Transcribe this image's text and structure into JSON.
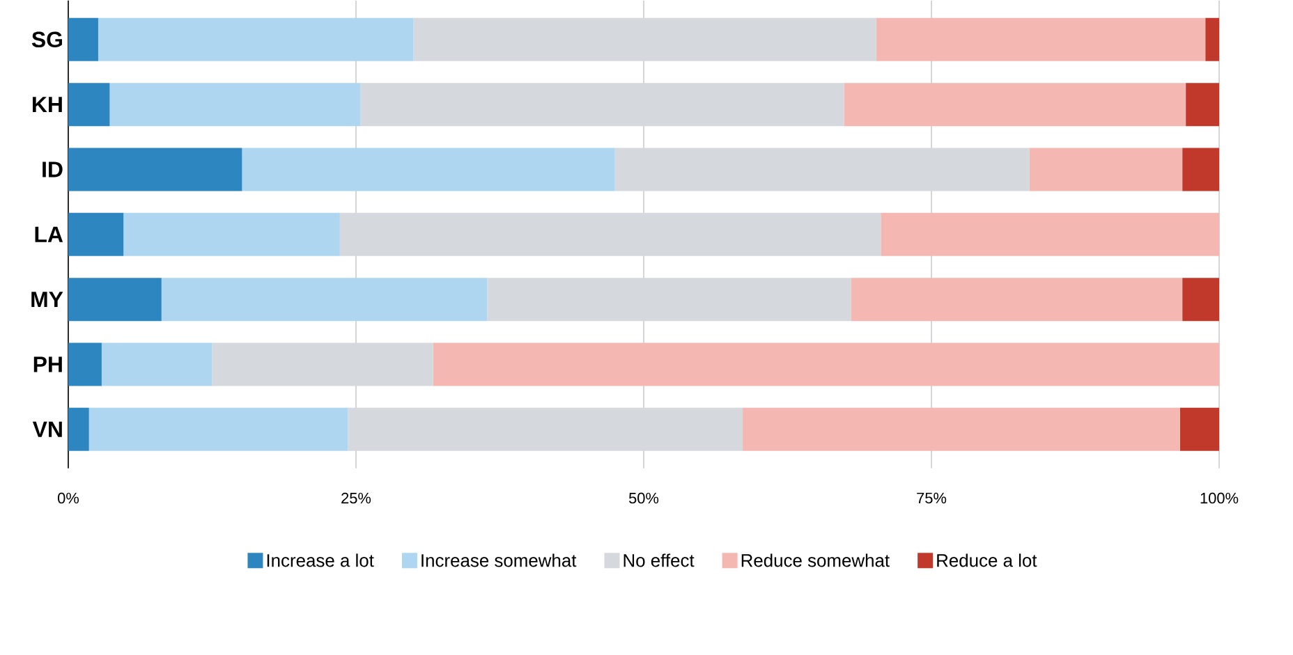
{
  "chart_data": {
    "type": "bar",
    "orientation": "horizontal",
    "stacked": true,
    "categories": [
      "SG",
      "KH",
      "ID",
      "LA",
      "MY",
      "PH",
      "VN"
    ],
    "series": [
      {
        "name": "Increase a lot",
        "color": "#2e86c1",
        "values": [
          2.6,
          3.6,
          15.1,
          4.8,
          8.1,
          2.9,
          1.8
        ]
      },
      {
        "name": "Increase somewhat",
        "color": "#aed6f1",
        "values": [
          27.4,
          21.8,
          32.4,
          18.8,
          28.3,
          9.6,
          22.5
        ]
      },
      {
        "name": "No effect",
        "color": "#d5d8dc",
        "values": [
          40.2,
          42.0,
          36.0,
          47.0,
          31.6,
          19.2,
          34.3
        ]
      },
      {
        "name": "Reduce somewhat",
        "color": "#f5b7b1",
        "values": [
          28.6,
          29.7,
          13.3,
          29.4,
          28.8,
          68.3,
          38.0
        ]
      },
      {
        "name": "Reduce a lot",
        "color": "#c0392b",
        "values": [
          1.2,
          2.9,
          3.2,
          0,
          3.2,
          0,
          3.4
        ]
      }
    ],
    "xlim": [
      0,
      100
    ],
    "xticks": [
      {
        "value": 0,
        "label": "0%"
      },
      {
        "value": 25,
        "label": "25%"
      },
      {
        "value": 50,
        "label": "50%"
      },
      {
        "value": 75,
        "label": "75%"
      },
      {
        "value": 100,
        "label": "100%"
      }
    ],
    "grid": "x",
    "legend": "bottom"
  }
}
